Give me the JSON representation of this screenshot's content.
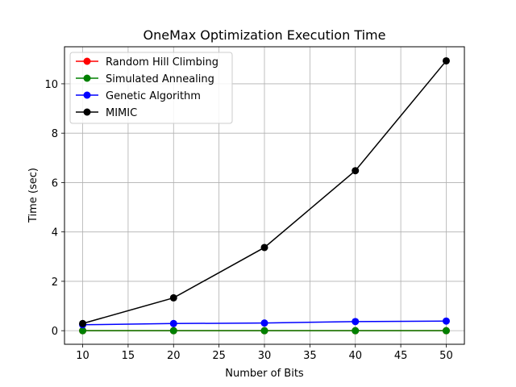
{
  "chart_data": {
    "type": "line",
    "title": "OneMax Optimization Execution Time",
    "xlabel": "Number of Bits",
    "ylabel": "Time (sec)",
    "x": [
      10,
      20,
      30,
      40,
      50
    ],
    "xlim": [
      8.0,
      52.0
    ],
    "ylim": [
      -0.55,
      11.5
    ],
    "xticks": [
      10,
      15,
      20,
      25,
      30,
      35,
      40,
      45,
      50
    ],
    "yticks": [
      0,
      2,
      4,
      6,
      8,
      10
    ],
    "grid": true,
    "legend_position": "upper-left",
    "series": [
      {
        "name": "Random Hill Climbing",
        "color": "#ff0000",
        "values": [
          0.0,
          0.0,
          0.0,
          0.0,
          0.0
        ]
      },
      {
        "name": "Simulated Annealing",
        "color": "#008000",
        "values": [
          0.0,
          0.0,
          0.0,
          0.0,
          0.0
        ]
      },
      {
        "name": "Genetic Algorithm",
        "color": "#0000ff",
        "values": [
          0.24,
          0.29,
          0.31,
          0.37,
          0.39
        ]
      },
      {
        "name": "MIMIC",
        "color": "#000000",
        "values": [
          0.29,
          1.33,
          3.37,
          6.48,
          10.93
        ]
      }
    ]
  }
}
